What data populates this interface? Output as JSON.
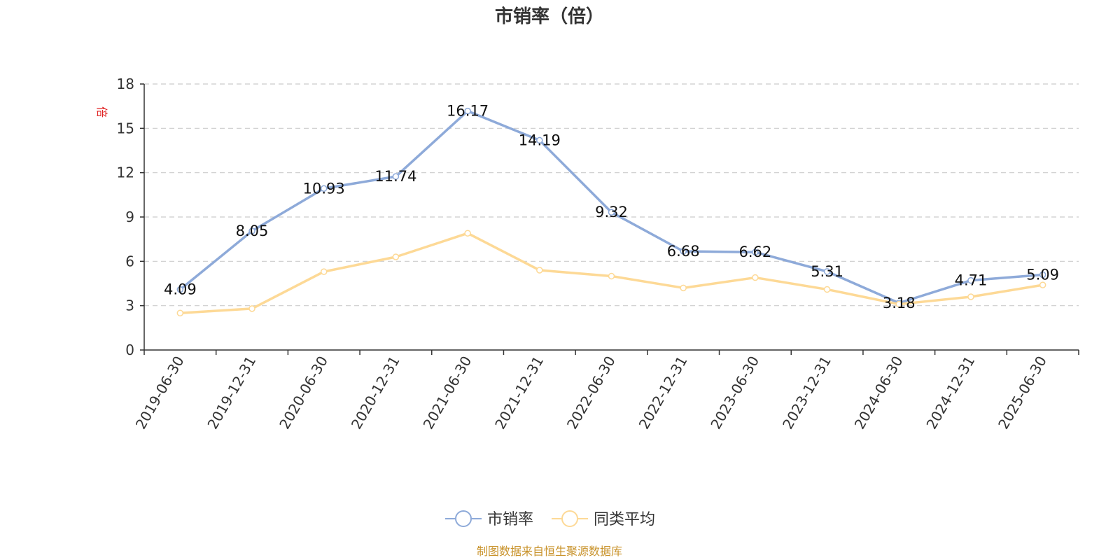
{
  "colors": {
    "series1": "#8eaad9",
    "series2": "#fdd996",
    "grid": "#cccccc",
    "axis": "#333333",
    "unit": "#e02020",
    "source": "#c8922a"
  },
  "source_text": "制图数据来自恒生聚源数据库",
  "chart_data": {
    "type": "line",
    "title": "市销率（倍）",
    "ylabel": "倍",
    "xlabel": "",
    "ylim": [
      0,
      18
    ],
    "yticks": [
      0,
      3,
      6,
      9,
      12,
      15,
      18
    ],
    "grid": true,
    "legend_position": "bottom-center",
    "categories": [
      "2019-06-30",
      "2019-12-31",
      "2020-06-30",
      "2020-12-31",
      "2021-06-30",
      "2021-12-31",
      "2022-06-30",
      "2022-12-31",
      "2023-06-30",
      "2023-12-31",
      "2024-06-30",
      "2024-12-31",
      "2025-06-30"
    ],
    "series": [
      {
        "name": "市销率",
        "values": [
          4.09,
          8.05,
          10.93,
          11.74,
          16.17,
          14.19,
          9.32,
          6.68,
          6.62,
          5.31,
          3.18,
          4.71,
          5.09
        ],
        "labels": [
          "4.09",
          "8.05",
          "10.93",
          "11.74",
          "16.17",
          "14.19",
          "9.32",
          "6.68",
          "6.62",
          "5.31",
          "3.18",
          "4.71",
          "5.09"
        ]
      },
      {
        "name": "同类平均",
        "values": [
          2.5,
          2.8,
          5.3,
          6.3,
          7.9,
          5.4,
          5.0,
          4.2,
          4.9,
          4.1,
          3.1,
          3.6,
          4.4
        ]
      }
    ]
  }
}
